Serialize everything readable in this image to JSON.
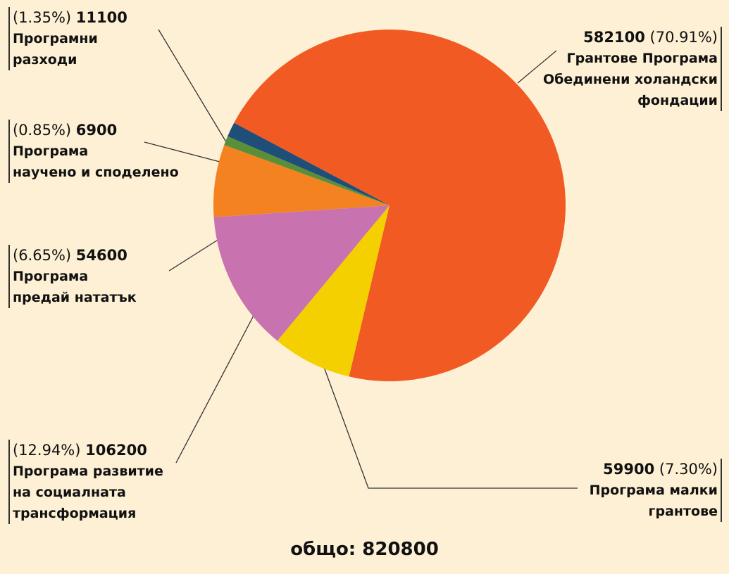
{
  "chart_data": {
    "type": "pie",
    "categories": [
      "Грантове Програма\nОбединени холандски\nфондации",
      "Програма малки\nгрантове",
      "Програма развитие\nна социалната\nтрансформация",
      "Програма\nпредай нататък",
      "Програма\nнаучено и споделено",
      "Програмни\nразходи"
    ],
    "values": [
      582100,
      59900,
      106200,
      54600,
      6900,
      11100
    ],
    "percent_labels": [
      "(70.91%)",
      "(7.30%)",
      "(12.94%)",
      "(6.65%)",
      "(0.85%)",
      "(1.35%)"
    ],
    "colors": [
      "#f15a22",
      "#f5d000",
      "#c873b0",
      "#f58220",
      "#5a8f3a",
      "#1f4e79"
    ],
    "total_label": "общо: 820800"
  }
}
